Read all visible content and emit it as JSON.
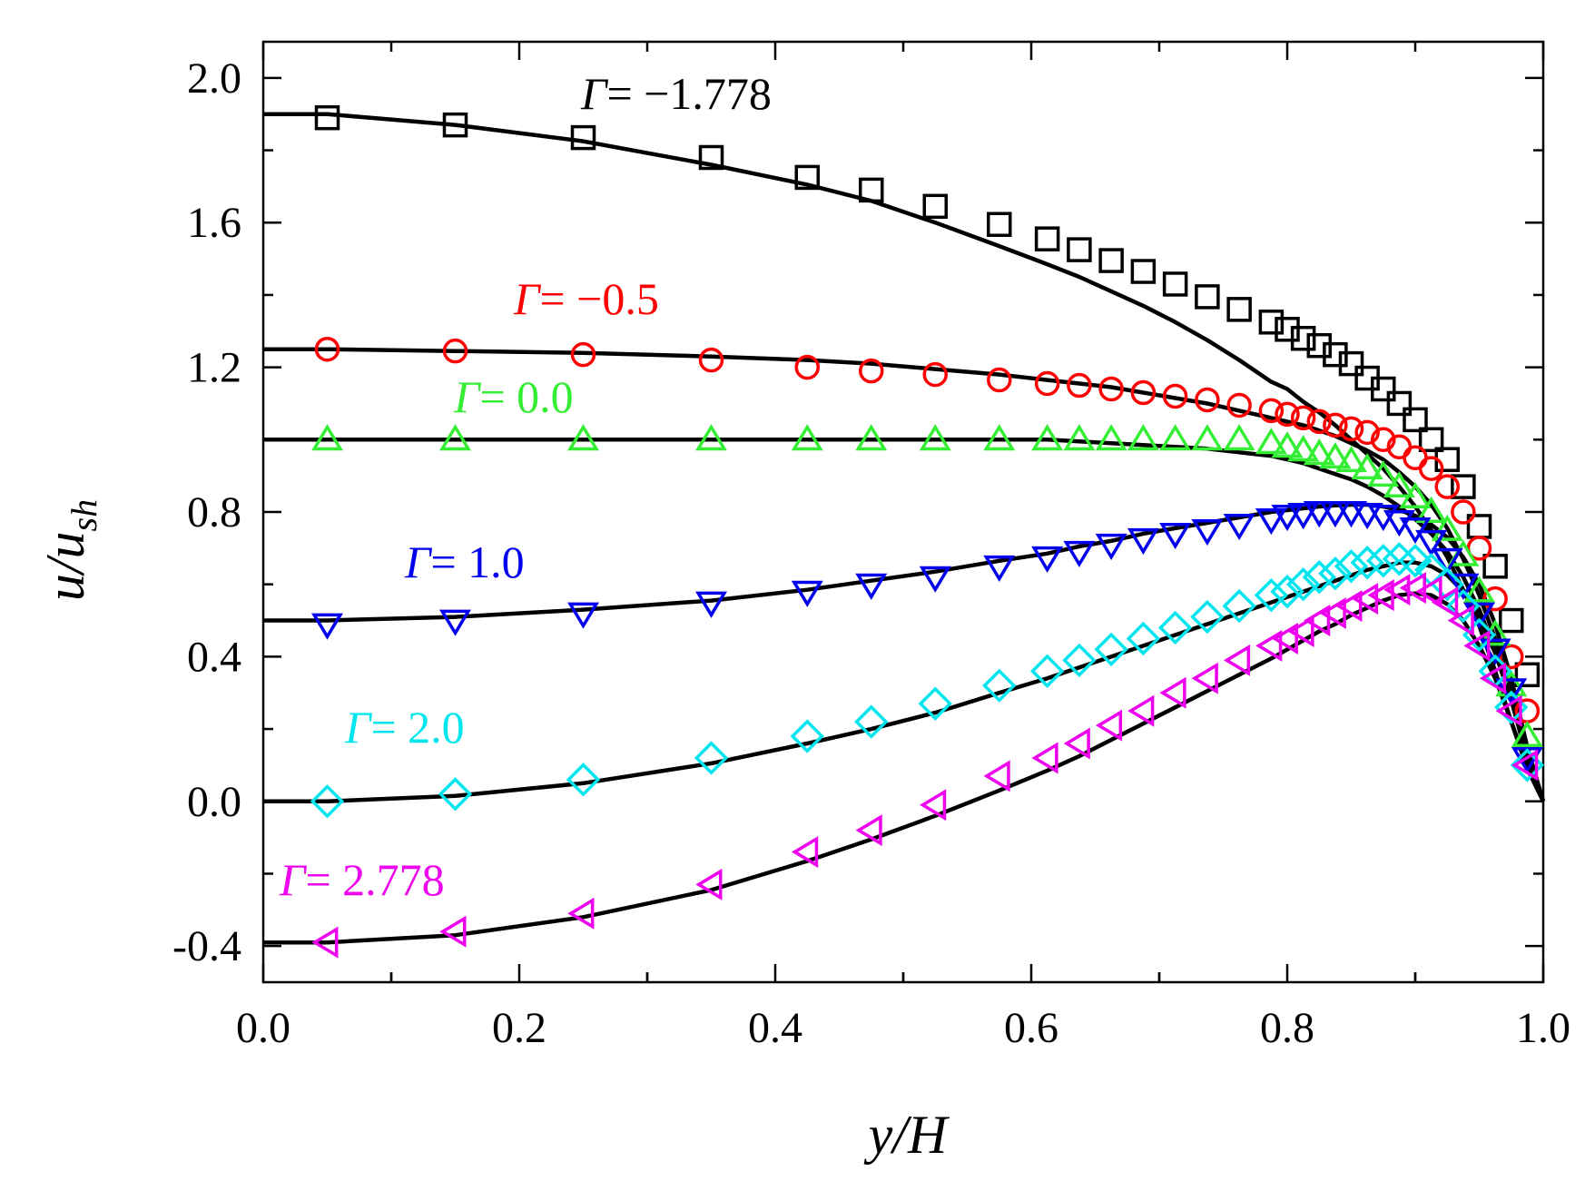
{
  "chart_data": {
    "type": "line",
    "title": "",
    "xlabel": "y/H",
    "ylabel_main": "u/u",
    "ylabel_sub": "sh",
    "xlim": [
      0.0,
      1.0
    ],
    "ylim": [
      -0.5,
      2.1
    ],
    "xticks": [
      "0.0",
      "0.2",
      "0.4",
      "0.6",
      "0.8",
      "1.0"
    ],
    "yticks": [
      "-0.4",
      "0.0",
      "0.4",
      "0.8",
      "1.2",
      "1.6",
      "2.0"
    ],
    "grid": false,
    "series": [
      {
        "name": "Γ = −1.778",
        "gamma_symbol": "Γ",
        "gamma_value": "= −1.778",
        "color": "#000000",
        "marker": "square",
        "x": [
          0.05,
          0.15,
          0.25,
          0.35,
          0.425,
          0.475,
          0.525,
          0.575,
          0.6125,
          0.6375,
          0.6625,
          0.6875,
          0.7125,
          0.7375,
          0.7625,
          0.7875,
          0.8,
          0.8125,
          0.825,
          0.8375,
          0.85,
          0.8625,
          0.875,
          0.8875,
          0.9,
          0.9125,
          0.925,
          0.9375,
          0.95,
          0.9625,
          0.975,
          0.9875
        ],
        "points": [
          1.89,
          1.87,
          1.835,
          1.78,
          1.725,
          1.69,
          1.645,
          1.595,
          1.555,
          1.525,
          1.495,
          1.465,
          1.43,
          1.395,
          1.36,
          1.325,
          1.305,
          1.28,
          1.26,
          1.235,
          1.21,
          1.17,
          1.14,
          1.1,
          1.055,
          1.0,
          0.945,
          0.87,
          0.76,
          0.65,
          0.5,
          0.35
        ],
        "curve": [
          1.9,
          1.87,
          1.825,
          1.76,
          1.705,
          1.66,
          1.6,
          1.535,
          1.485,
          1.45,
          1.41,
          1.37,
          1.325,
          1.275,
          1.22,
          1.16,
          1.14,
          1.105,
          1.075,
          1.04,
          1.0,
          0.96,
          0.92,
          0.87,
          0.815,
          0.75,
          0.675,
          0.585,
          0.485,
          0.36,
          0.22,
          0.1
        ]
      },
      {
        "name": "Γ = −0.5",
        "gamma_symbol": "Γ",
        "gamma_value": "= −0.5",
        "color": "#ff0000",
        "marker": "circle",
        "x": [
          0.05,
          0.15,
          0.25,
          0.35,
          0.425,
          0.475,
          0.525,
          0.575,
          0.6125,
          0.6375,
          0.6625,
          0.6875,
          0.7125,
          0.7375,
          0.7625,
          0.7875,
          0.8,
          0.8125,
          0.825,
          0.8375,
          0.85,
          0.8625,
          0.875,
          0.8875,
          0.9,
          0.9125,
          0.925,
          0.9375,
          0.95,
          0.9625,
          0.975,
          0.9875
        ],
        "points": [
          1.25,
          1.245,
          1.235,
          1.22,
          1.2,
          1.19,
          1.18,
          1.165,
          1.155,
          1.15,
          1.14,
          1.13,
          1.12,
          1.11,
          1.095,
          1.08,
          1.07,
          1.06,
          1.05,
          1.04,
          1.03,
          1.02,
          1.0,
          0.98,
          0.95,
          0.92,
          0.87,
          0.8,
          0.7,
          0.56,
          0.4,
          0.25
        ],
        "curve": [
          1.25,
          1.245,
          1.24,
          1.23,
          1.22,
          1.21,
          1.195,
          1.18,
          1.165,
          1.155,
          1.145,
          1.13,
          1.115,
          1.1,
          1.08,
          1.06,
          1.05,
          1.04,
          1.025,
          1.01,
          0.99,
          0.97,
          0.945,
          0.91,
          0.87,
          0.82,
          0.755,
          0.67,
          0.57,
          0.45,
          0.3,
          0.12
        ]
      },
      {
        "name": "Γ = 0.0",
        "gamma_symbol": "Γ",
        "gamma_value": "= 0.0",
        "color": "#33ee33",
        "marker": "triangle-up",
        "x": [
          0.05,
          0.15,
          0.25,
          0.35,
          0.425,
          0.475,
          0.525,
          0.575,
          0.6125,
          0.6375,
          0.6625,
          0.6875,
          0.7125,
          0.7375,
          0.7625,
          0.7875,
          0.8,
          0.8125,
          0.825,
          0.8375,
          0.85,
          0.8625,
          0.875,
          0.8875,
          0.9,
          0.9125,
          0.925,
          0.9375,
          0.95,
          0.9625,
          0.975,
          0.9875
        ],
        "points": [
          1.0,
          1.0,
          1.0,
          1.0,
          1.0,
          1.0,
          1.0,
          1.0,
          1.0,
          1.0,
          1.0,
          1.0,
          1.0,
          1.0,
          1.0,
          0.99,
          0.98,
          0.97,
          0.96,
          0.95,
          0.94,
          0.92,
          0.9,
          0.87,
          0.84,
          0.8,
          0.75,
          0.68,
          0.58,
          0.46,
          0.32,
          0.18
        ],
        "curve": [
          1.0,
          1.0,
          1.0,
          1.0,
          1.0,
          1.0,
          1.0,
          1.0,
          1.0,
          0.995,
          0.99,
          0.985,
          0.98,
          0.975,
          0.965,
          0.955,
          0.945,
          0.935,
          0.92,
          0.905,
          0.89,
          0.87,
          0.845,
          0.815,
          0.78,
          0.74,
          0.69,
          0.62,
          0.53,
          0.42,
          0.28,
          0.12
        ]
      },
      {
        "name": "Γ = 1.0",
        "gamma_symbol": "Γ",
        "gamma_value": "= 1.0",
        "color": "#0000ee",
        "marker": "triangle-down",
        "x": [
          0.05,
          0.15,
          0.25,
          0.35,
          0.425,
          0.475,
          0.525,
          0.575,
          0.6125,
          0.6375,
          0.6625,
          0.6875,
          0.7125,
          0.7375,
          0.7625,
          0.7875,
          0.8,
          0.8125,
          0.825,
          0.8375,
          0.85,
          0.8625,
          0.875,
          0.8875,
          0.9,
          0.9125,
          0.925,
          0.9375,
          0.95,
          0.9625,
          0.975,
          0.9875
        ],
        "points": [
          0.49,
          0.5,
          0.52,
          0.55,
          0.58,
          0.6,
          0.62,
          0.65,
          0.675,
          0.69,
          0.71,
          0.725,
          0.74,
          0.75,
          0.765,
          0.78,
          0.79,
          0.795,
          0.8,
          0.8,
          0.8,
          0.795,
          0.79,
          0.775,
          0.755,
          0.72,
          0.67,
          0.6,
          0.52,
          0.42,
          0.31,
          0.12
        ],
        "curve": [
          0.5,
          0.51,
          0.53,
          0.555,
          0.585,
          0.61,
          0.635,
          0.665,
          0.685,
          0.705,
          0.72,
          0.74,
          0.755,
          0.77,
          0.785,
          0.8,
          0.805,
          0.81,
          0.815,
          0.818,
          0.82,
          0.82,
          0.815,
          0.805,
          0.79,
          0.765,
          0.73,
          0.675,
          0.6,
          0.49,
          0.34,
          0.15
        ]
      },
      {
        "name": "Γ = 2.0",
        "gamma_symbol": "Γ",
        "gamma_value": "= 2.0",
        "color": "#00e5ee",
        "marker": "diamond",
        "x": [
          0.05,
          0.15,
          0.25,
          0.35,
          0.425,
          0.475,
          0.525,
          0.575,
          0.6125,
          0.6375,
          0.6625,
          0.6875,
          0.7125,
          0.7375,
          0.7625,
          0.7875,
          0.8,
          0.8125,
          0.825,
          0.8375,
          0.85,
          0.8625,
          0.875,
          0.8875,
          0.9,
          0.9125,
          0.925,
          0.9375,
          0.95,
          0.9625,
          0.975,
          0.9875
        ],
        "points": [
          0.0,
          0.02,
          0.06,
          0.12,
          0.18,
          0.22,
          0.27,
          0.32,
          0.36,
          0.39,
          0.42,
          0.45,
          0.48,
          0.51,
          0.54,
          0.57,
          0.58,
          0.6,
          0.62,
          0.63,
          0.65,
          0.66,
          0.665,
          0.67,
          0.665,
          0.64,
          0.6,
          0.54,
          0.46,
          0.36,
          0.26,
          0.1
        ],
        "curve": [
          0.0,
          0.015,
          0.05,
          0.105,
          0.16,
          0.2,
          0.245,
          0.3,
          0.34,
          0.37,
          0.4,
          0.43,
          0.46,
          0.49,
          0.52,
          0.55,
          0.565,
          0.58,
          0.595,
          0.61,
          0.625,
          0.64,
          0.65,
          0.66,
          0.66,
          0.65,
          0.625,
          0.58,
          0.51,
          0.41,
          0.28,
          0.12
        ]
      },
      {
        "name": "Γ = 2.778",
        "gamma_symbol": "Γ",
        "gamma_value": "= 2.778",
        "color": "#ee00ee",
        "marker": "triangle-left",
        "x": [
          0.05,
          0.15,
          0.25,
          0.35,
          0.425,
          0.475,
          0.525,
          0.575,
          0.6125,
          0.6375,
          0.6625,
          0.6875,
          0.7125,
          0.7375,
          0.7625,
          0.7875,
          0.8,
          0.8125,
          0.825,
          0.8375,
          0.85,
          0.8625,
          0.875,
          0.8875,
          0.9,
          0.9125,
          0.925,
          0.9375,
          0.95,
          0.9625,
          0.975,
          0.9875
        ],
        "points": [
          -0.39,
          -0.36,
          -0.31,
          -0.23,
          -0.14,
          -0.08,
          -0.01,
          0.07,
          0.12,
          0.16,
          0.21,
          0.25,
          0.3,
          0.34,
          0.39,
          0.43,
          0.45,
          0.47,
          0.5,
          0.52,
          0.54,
          0.56,
          0.57,
          0.585,
          0.59,
          0.58,
          0.55,
          0.5,
          0.43,
          0.34,
          0.25,
          0.1
        ],
        "curve": [
          -0.39,
          -0.37,
          -0.32,
          -0.245,
          -0.165,
          -0.105,
          -0.04,
          0.03,
          0.085,
          0.125,
          0.17,
          0.215,
          0.26,
          0.305,
          0.35,
          0.395,
          0.42,
          0.445,
          0.47,
          0.49,
          0.515,
          0.535,
          0.555,
          0.57,
          0.575,
          0.57,
          0.545,
          0.5,
          0.43,
          0.34,
          0.22,
          0.09
        ]
      }
    ]
  }
}
